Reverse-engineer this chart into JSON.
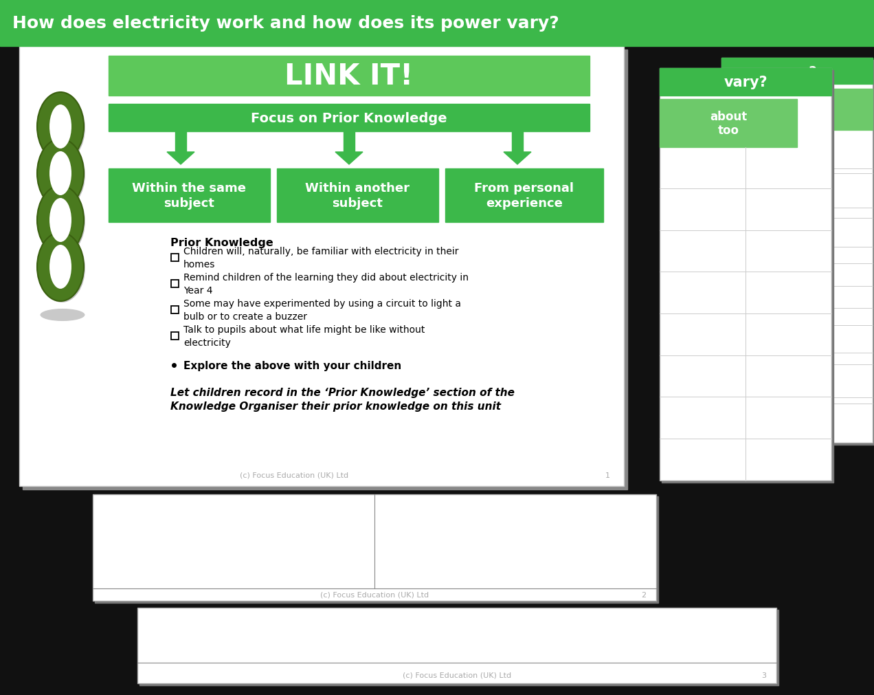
{
  "title": "How does electricity work and how does its power vary?",
  "title_bg": "#3cb84a",
  "title_text_color": "#ffffff",
  "link_it_text": "LINK IT!",
  "link_it_bg": "#5dc85a",
  "focus_text": "Focus on Prior Knowledge",
  "focus_bg": "#3cb84a",
  "boxes": [
    {
      "label": "Within the same\nsubject",
      "bg": "#3cb84a"
    },
    {
      "label": "Within another\nsubject",
      "bg": "#3cb84a"
    },
    {
      "label": "From personal\nexperience",
      "bg": "#3cb84a"
    }
  ],
  "arrow_color": "#3cb84a",
  "prior_knowledge_title": "Prior Knowledge",
  "bullet_points": [
    "Children will, naturally, be familiar with electricity in their\nhomes",
    "Remind children of the learning they did about electricity in\nYear 4",
    "Some may have experimented by using a circuit to light a\nbulb or to create a buzzer",
    "Talk to pupils about what life might be like without\nelectricity"
  ],
  "explore_text": "Explore the above with your children",
  "italic_text": "Let children record in the ‘Prior Knowledge’ section of the\nKnowledge Organiser their prior knowledge on this unit",
  "footer_text": "(c) Focus Education (UK) Ltd",
  "page_number": "1",
  "chain_color": "#4a7a1e",
  "chain_dark": "#3a6010"
}
